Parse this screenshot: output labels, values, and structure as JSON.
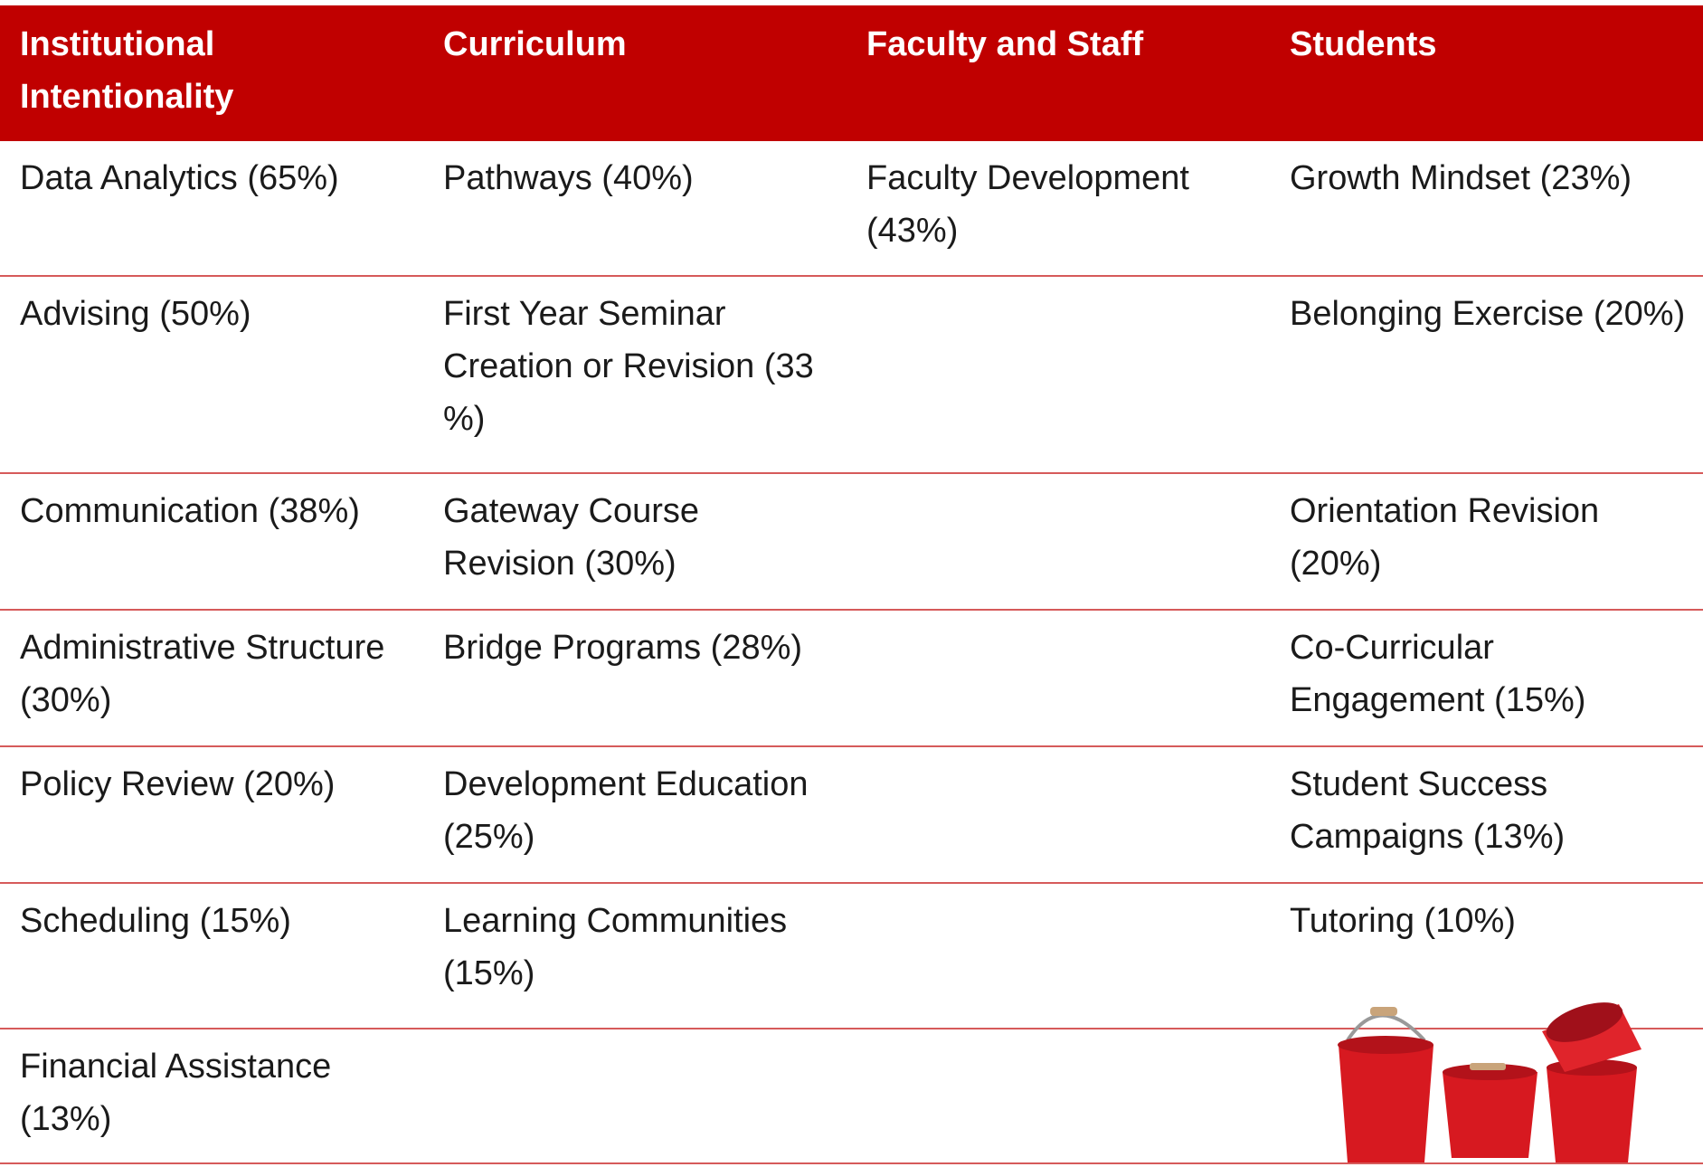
{
  "table": {
    "header": [
      "Institutional Intentionality",
      "Curriculum",
      "Faculty and Staff",
      "Students"
    ],
    "rows": [
      [
        "Data Analytics (65%)",
        "Pathways (40%)",
        "Faculty Development (43%)",
        "Growth Mindset (23%)"
      ],
      [
        "Advising (50%)",
        "First Year Seminar Creation or Revision (33 %)",
        null,
        "Belonging Exercise (20%)"
      ],
      [
        "Communication (38%)",
        "Gateway Course Revision (30%)",
        null,
        "Orientation Revision (20%)"
      ],
      [
        "Administrative Structure (30%)",
        "Bridge Programs (28%)",
        null,
        "Co-Curricular Engagement (15%)"
      ],
      [
        "Policy Review (20%)",
        "Development Education (25%)",
        null,
        "Student Success Campaigns (13%)"
      ],
      [
        "Scheduling (15%)",
        "Learning Communities (15%)",
        null,
        "Tutoring (10%)"
      ],
      [
        "Financial Assistance (13%)",
        null,
        null,
        null
      ]
    ]
  }
}
